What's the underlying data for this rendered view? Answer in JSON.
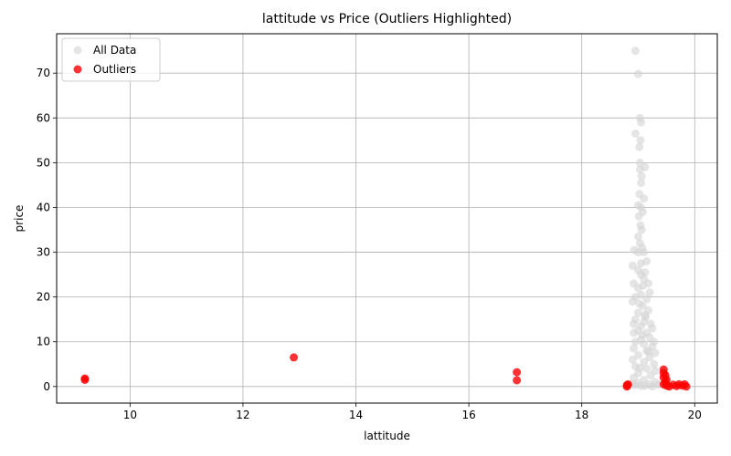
{
  "chart_data": {
    "type": "scatter",
    "title": "lattitude vs Price (Outliers Highlighted)",
    "xlabel": "lattitude",
    "ylabel": "price",
    "xlim": [
      8.7,
      20.4
    ],
    "ylim": [
      -3.7,
      78.8
    ],
    "xticks": [
      10,
      12,
      14,
      16,
      18,
      20
    ],
    "yticks": [
      0,
      10,
      20,
      30,
      40,
      50,
      60,
      70
    ],
    "grid": true,
    "legend_position": "top-left",
    "series": [
      {
        "name": "All Data",
        "color": "#d3d3d3",
        "points": [
          [
            18.95,
            75.0
          ],
          [
            19.0,
            69.8
          ],
          [
            19.03,
            60.0
          ],
          [
            19.05,
            59.0
          ],
          [
            18.95,
            56.5
          ],
          [
            19.04,
            55.0
          ],
          [
            19.02,
            53.5
          ],
          [
            19.03,
            50.0
          ],
          [
            19.12,
            49.0
          ],
          [
            19.03,
            48.5
          ],
          [
            19.06,
            47.0
          ],
          [
            19.05,
            45.5
          ],
          [
            19.02,
            43.0
          ],
          [
            19.1,
            42.0
          ],
          [
            19.0,
            40.5
          ],
          [
            19.05,
            40.0
          ],
          [
            19.08,
            39.0
          ],
          [
            19.01,
            38.0
          ],
          [
            19.04,
            36.0
          ],
          [
            19.06,
            35.0
          ],
          [
            19.0,
            33.5
          ],
          [
            19.03,
            32.0
          ],
          [
            19.07,
            31.0
          ],
          [
            18.93,
            30.5
          ],
          [
            19.0,
            30.0
          ],
          [
            19.1,
            30.0
          ],
          [
            19.15,
            28.0
          ],
          [
            18.9,
            27.0
          ],
          [
            19.05,
            27.5
          ],
          [
            19.0,
            26.0
          ],
          [
            19.12,
            25.5
          ],
          [
            19.05,
            25.0
          ],
          [
            19.1,
            24.0
          ],
          [
            19.18,
            23.0
          ],
          [
            18.92,
            23.0
          ],
          [
            19.0,
            22.0
          ],
          [
            19.2,
            21.0
          ],
          [
            19.05,
            20.5
          ],
          [
            18.95,
            20.0
          ],
          [
            19.15,
            19.5
          ],
          [
            18.9,
            19.0
          ],
          [
            19.08,
            18.0
          ],
          [
            19.18,
            17.0
          ],
          [
            19.0,
            16.5
          ],
          [
            19.12,
            16.0
          ],
          [
            18.95,
            15.0
          ],
          [
            19.1,
            14.5
          ],
          [
            19.22,
            14.0
          ],
          [
            18.92,
            14.0
          ],
          [
            19.05,
            13.5
          ],
          [
            19.25,
            13.0
          ],
          [
            19.0,
            12.5
          ],
          [
            19.15,
            12.0
          ],
          [
            18.92,
            12.0
          ],
          [
            19.2,
            11.0
          ],
          [
            19.05,
            10.5
          ],
          [
            19.28,
            10.0
          ],
          [
            18.95,
            10.0
          ],
          [
            19.1,
            9.5
          ],
          [
            19.25,
            9.0
          ],
          [
            18.92,
            8.5
          ],
          [
            19.15,
            8.0
          ],
          [
            19.3,
            7.5
          ],
          [
            19.0,
            7.0
          ],
          [
            19.2,
            6.5
          ],
          [
            18.9,
            6.0
          ],
          [
            19.1,
            5.5
          ],
          [
            19.28,
            5.0
          ],
          [
            18.95,
            4.5
          ],
          [
            19.15,
            4.0
          ],
          [
            19.3,
            3.5
          ],
          [
            19.0,
            3.0
          ],
          [
            19.22,
            2.5
          ],
          [
            18.92,
            2.0
          ],
          [
            19.1,
            1.5
          ],
          [
            19.3,
            1.0
          ],
          [
            19.0,
            0.8
          ],
          [
            19.2,
            0.5
          ],
          [
            18.95,
            0.3
          ],
          [
            19.12,
            0.2
          ],
          [
            19.35,
            0.4
          ],
          [
            19.05,
            0.1
          ],
          [
            19.25,
            0.0
          ],
          [
            18.9,
            0.5
          ],
          [
            19.08,
            22.5
          ],
          [
            19.02,
            18.5
          ],
          [
            19.13,
            15.5
          ],
          [
            19.07,
            11.5
          ],
          [
            19.18,
            7.8
          ],
          [
            19.03,
            4.2
          ]
        ]
      },
      {
        "name": "Outliers",
        "color": "#ff0000",
        "points": [
          [
            9.2,
            1.8
          ],
          [
            9.2,
            1.5
          ],
          [
            12.9,
            6.5
          ],
          [
            16.85,
            3.2
          ],
          [
            16.85,
            1.4
          ],
          [
            18.8,
            0.3
          ],
          [
            18.8,
            0.0
          ],
          [
            18.82,
            0.5
          ],
          [
            19.45,
            3.8
          ],
          [
            19.45,
            3.0
          ],
          [
            19.48,
            2.5
          ],
          [
            19.45,
            2.0
          ],
          [
            19.5,
            1.5
          ],
          [
            19.48,
            1.0
          ],
          [
            19.45,
            0.5
          ],
          [
            19.5,
            0.2
          ],
          [
            19.55,
            0.0
          ],
          [
            19.62,
            0.4
          ],
          [
            19.68,
            0.1
          ],
          [
            19.72,
            0.5
          ],
          [
            19.78,
            0.2
          ],
          [
            19.82,
            0.5
          ],
          [
            19.85,
            0.0
          ]
        ]
      }
    ]
  }
}
